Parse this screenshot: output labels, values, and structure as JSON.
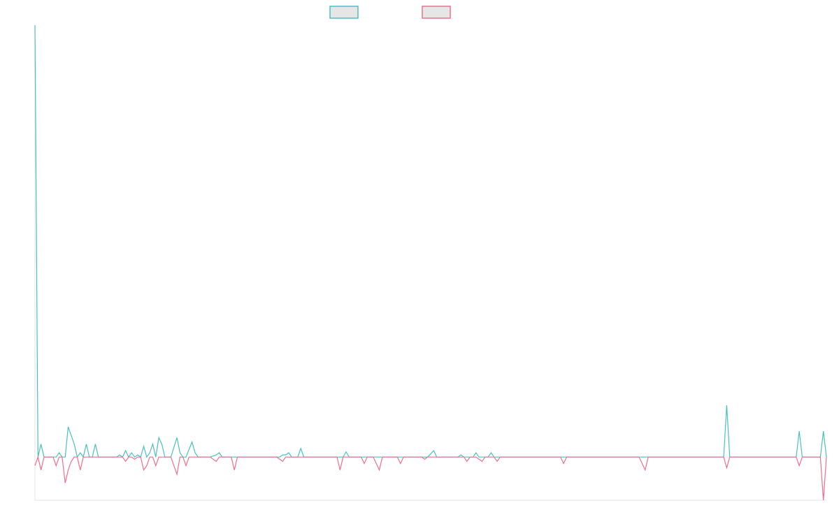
{
  "chart_data": {
    "type": "line",
    "title": "",
    "xlabel": "",
    "ylabel": "",
    "grid": false,
    "legend_position": "top-center",
    "ylim": [
      -10,
      100
    ],
    "x_count": 262,
    "series": [
      {
        "color": "#4bc0c0",
        "legend_fill": "#e6e6e6",
        "points": [
          [
            0,
            100
          ],
          [
            1,
            0
          ],
          [
            2,
            3
          ],
          [
            3,
            0
          ],
          [
            4,
            0
          ],
          [
            5,
            0
          ],
          [
            6,
            0
          ],
          [
            7,
            0
          ],
          [
            8,
            1
          ],
          [
            9,
            0
          ],
          [
            10,
            0
          ],
          [
            11,
            7
          ],
          [
            12,
            5
          ],
          [
            13,
            3
          ],
          [
            14,
            0
          ],
          [
            15,
            1
          ],
          [
            16,
            0
          ],
          [
            17,
            3
          ],
          [
            18,
            0
          ],
          [
            19,
            0
          ],
          [
            20,
            3
          ],
          [
            21,
            0
          ],
          [
            22,
            0
          ],
          [
            23,
            0
          ],
          [
            27,
            0
          ],
          [
            28,
            0.5
          ],
          [
            29,
            0
          ],
          [
            30,
            1.5
          ],
          [
            31,
            0
          ],
          [
            32,
            1
          ],
          [
            33,
            0
          ],
          [
            34,
            0.5
          ],
          [
            35,
            0
          ],
          [
            36,
            2.5
          ],
          [
            37,
            0
          ],
          [
            38,
            1
          ],
          [
            39,
            3
          ],
          [
            40,
            0
          ],
          [
            41,
            4.5
          ],
          [
            42,
            3
          ],
          [
            43,
            0
          ],
          [
            44,
            0
          ],
          [
            45,
            0
          ],
          [
            47,
            4.5
          ],
          [
            48,
            1
          ],
          [
            49,
            0
          ],
          [
            50,
            0
          ],
          [
            52,
            3.5
          ],
          [
            53,
            1
          ],
          [
            54,
            0
          ],
          [
            58,
            0
          ],
          [
            60,
            0.5
          ],
          [
            61,
            1
          ],
          [
            62,
            0
          ],
          [
            64,
            0
          ],
          [
            65,
            0
          ],
          [
            67,
            0
          ],
          [
            68,
            0
          ],
          [
            70,
            0
          ],
          [
            72,
            0
          ],
          [
            74,
            0
          ],
          [
            76,
            0
          ],
          [
            78,
            0
          ],
          [
            80,
            0
          ],
          [
            81,
            0
          ],
          [
            82,
            0.5
          ],
          [
            83,
            0.5
          ],
          [
            84,
            1
          ],
          [
            85,
            0
          ],
          [
            86,
            0
          ],
          [
            87,
            0
          ],
          [
            88,
            2
          ],
          [
            89,
            0
          ],
          [
            90,
            0
          ],
          [
            92,
            0
          ],
          [
            94,
            0
          ],
          [
            96,
            0
          ],
          [
            98,
            0
          ],
          [
            100,
            0
          ],
          [
            102,
            0
          ],
          [
            103,
            1.2
          ],
          [
            104,
            0
          ],
          [
            105,
            0
          ],
          [
            106,
            0
          ],
          [
            108,
            0
          ],
          [
            110,
            0
          ],
          [
            112,
            0
          ],
          [
            114,
            0
          ],
          [
            116,
            0
          ],
          [
            118,
            0
          ],
          [
            120,
            0
          ],
          [
            122,
            0
          ],
          [
            124,
            0
          ],
          [
            126,
            0
          ],
          [
            128,
            0
          ],
          [
            130,
            0
          ],
          [
            132,
            1.5
          ],
          [
            133,
            0
          ],
          [
            134,
            0
          ],
          [
            136,
            0
          ],
          [
            138,
            0
          ],
          [
            140,
            0
          ],
          [
            141,
            0.5
          ],
          [
            142,
            0
          ],
          [
            143,
            0
          ],
          [
            145,
            0
          ],
          [
            146,
            1
          ],
          [
            147,
            0
          ],
          [
            148,
            0
          ],
          [
            150,
            0
          ],
          [
            151,
            1
          ],
          [
            152,
            0
          ],
          [
            154,
            0
          ],
          [
            155,
            0
          ],
          [
            156,
            0
          ],
          [
            157,
            0
          ],
          [
            158,
            0
          ],
          [
            160,
            0
          ],
          [
            162,
            0
          ],
          [
            164,
            0
          ],
          [
            166,
            0
          ],
          [
            168,
            0
          ],
          [
            170,
            0
          ],
          [
            172,
            0
          ],
          [
            174,
            0
          ],
          [
            175,
            0
          ],
          [
            176,
            0
          ],
          [
            178,
            0
          ],
          [
            180,
            0
          ],
          [
            182,
            0
          ],
          [
            184,
            0
          ],
          [
            186,
            0
          ],
          [
            188,
            0
          ],
          [
            190,
            0
          ],
          [
            192,
            0
          ],
          [
            194,
            0
          ],
          [
            196,
            0
          ],
          [
            198,
            0
          ],
          [
            200,
            0
          ],
          [
            202,
            0
          ],
          [
            204,
            0
          ],
          [
            206,
            0
          ],
          [
            208,
            0
          ],
          [
            210,
            0
          ],
          [
            212,
            0
          ],
          [
            214,
            0
          ],
          [
            216,
            0
          ],
          [
            218,
            0
          ],
          [
            220,
            0
          ],
          [
            222,
            0
          ],
          [
            224,
            0
          ],
          [
            226,
            0
          ],
          [
            228,
            0
          ],
          [
            229,
            12
          ],
          [
            230,
            0
          ],
          [
            232,
            0
          ],
          [
            234,
            0
          ],
          [
            236,
            0
          ],
          [
            238,
            0
          ],
          [
            240,
            0
          ],
          [
            242,
            0
          ],
          [
            244,
            0
          ],
          [
            246,
            0
          ],
          [
            248,
            0
          ],
          [
            250,
            0
          ],
          [
            252,
            0
          ],
          [
            253,
            6
          ],
          [
            254,
            0
          ],
          [
            256,
            0
          ],
          [
            258,
            0
          ],
          [
            260,
            0
          ],
          [
            261,
            6
          ],
          [
            262,
            0
          ]
        ]
      },
      {
        "color": "#f06e8c",
        "legend_fill": "#e6e6e6",
        "points": [
          [
            0,
            -2
          ],
          [
            1,
            0
          ],
          [
            2,
            -3
          ],
          [
            3,
            0
          ],
          [
            4,
            0
          ],
          [
            5,
            0
          ],
          [
            6,
            0
          ],
          [
            7,
            -2
          ],
          [
            8,
            0
          ],
          [
            9,
            0
          ],
          [
            10,
            -6
          ],
          [
            11,
            -3
          ],
          [
            12,
            -1
          ],
          [
            13,
            0
          ],
          [
            14,
            0
          ],
          [
            15,
            -3
          ],
          [
            16,
            0
          ],
          [
            17,
            0
          ],
          [
            18,
            0
          ],
          [
            19,
            0
          ],
          [
            20,
            0
          ],
          [
            21,
            0
          ],
          [
            22,
            0
          ],
          [
            23,
            0
          ],
          [
            25,
            0
          ],
          [
            27,
            0
          ],
          [
            29,
            0
          ],
          [
            30,
            -1
          ],
          [
            31,
            0
          ],
          [
            32,
            0
          ],
          [
            33,
            -0.5
          ],
          [
            34,
            0
          ],
          [
            35,
            0
          ],
          [
            36,
            -3
          ],
          [
            37,
            -2
          ],
          [
            38,
            0
          ],
          [
            39,
            0
          ],
          [
            40,
            -2
          ],
          [
            41,
            0
          ],
          [
            42,
            0
          ],
          [
            43,
            0
          ],
          [
            44,
            0
          ],
          [
            45,
            0
          ],
          [
            47,
            -4
          ],
          [
            48,
            0
          ],
          [
            49,
            0
          ],
          [
            50,
            -2
          ],
          [
            51,
            0
          ],
          [
            52,
            0
          ],
          [
            54,
            0
          ],
          [
            56,
            0
          ],
          [
            58,
            0
          ],
          [
            60,
            -1
          ],
          [
            61,
            0
          ],
          [
            62,
            0
          ],
          [
            64,
            0
          ],
          [
            65,
            0
          ],
          [
            66,
            -3
          ],
          [
            67,
            0
          ],
          [
            68,
            0
          ],
          [
            70,
            0
          ],
          [
            72,
            0
          ],
          [
            74,
            0
          ],
          [
            76,
            0
          ],
          [
            78,
            0
          ],
          [
            80,
            0
          ],
          [
            81,
            -0.5
          ],
          [
            82,
            -1
          ],
          [
            83,
            0
          ],
          [
            84,
            0
          ],
          [
            86,
            0
          ],
          [
            88,
            0
          ],
          [
            90,
            0
          ],
          [
            92,
            0
          ],
          [
            94,
            0
          ],
          [
            96,
            0
          ],
          [
            98,
            0
          ],
          [
            100,
            0
          ],
          [
            101,
            -3
          ],
          [
            102,
            0
          ],
          [
            104,
            0
          ],
          [
            106,
            0
          ],
          [
            108,
            0
          ],
          [
            109,
            -1.5
          ],
          [
            110,
            0
          ],
          [
            112,
            0
          ],
          [
            114,
            -3
          ],
          [
            115,
            0
          ],
          [
            116,
            0
          ],
          [
            118,
            0
          ],
          [
            120,
            0
          ],
          [
            121,
            -1.5
          ],
          [
            122,
            0
          ],
          [
            124,
            0
          ],
          [
            126,
            0
          ],
          [
            128,
            0
          ],
          [
            129,
            -0.5
          ],
          [
            130,
            0
          ],
          [
            132,
            0
          ],
          [
            134,
            0
          ],
          [
            136,
            0
          ],
          [
            138,
            0
          ],
          [
            140,
            0
          ],
          [
            142,
            0
          ],
          [
            143,
            -1
          ],
          [
            144,
            0
          ],
          [
            146,
            0
          ],
          [
            148,
            -1
          ],
          [
            149,
            0
          ],
          [
            150,
            0
          ],
          [
            152,
            0
          ],
          [
            153,
            -1
          ],
          [
            154,
            0
          ],
          [
            156,
            0
          ],
          [
            158,
            0
          ],
          [
            160,
            0
          ],
          [
            162,
            0
          ],
          [
            164,
            0
          ],
          [
            166,
            0
          ],
          [
            168,
            0
          ],
          [
            170,
            0
          ],
          [
            172,
            0
          ],
          [
            174,
            0
          ],
          [
            175,
            -1.5
          ],
          [
            176,
            0
          ],
          [
            178,
            0
          ],
          [
            180,
            0
          ],
          [
            182,
            0
          ],
          [
            184,
            0
          ],
          [
            186,
            0
          ],
          [
            188,
            0
          ],
          [
            190,
            0
          ],
          [
            192,
            0
          ],
          [
            194,
            0
          ],
          [
            196,
            0
          ],
          [
            198,
            0
          ],
          [
            200,
            0
          ],
          [
            202,
            -3
          ],
          [
            203,
            0
          ],
          [
            204,
            0
          ],
          [
            206,
            0
          ],
          [
            208,
            0
          ],
          [
            210,
            0
          ],
          [
            212,
            0
          ],
          [
            214,
            0
          ],
          [
            216,
            0
          ],
          [
            218,
            0
          ],
          [
            220,
            0
          ],
          [
            222,
            0
          ],
          [
            224,
            0
          ],
          [
            226,
            0
          ],
          [
            228,
            0
          ],
          [
            229,
            -2.5
          ],
          [
            230,
            0
          ],
          [
            232,
            0
          ],
          [
            234,
            0
          ],
          [
            236,
            0
          ],
          [
            238,
            0
          ],
          [
            240,
            0
          ],
          [
            242,
            0
          ],
          [
            244,
            0
          ],
          [
            246,
            0
          ],
          [
            248,
            0
          ],
          [
            250,
            0
          ],
          [
            252,
            0
          ],
          [
            253,
            -2
          ],
          [
            254,
            0
          ],
          [
            256,
            0
          ],
          [
            258,
            0
          ],
          [
            260,
            0
          ],
          [
            261,
            -10
          ],
          [
            262,
            0
          ]
        ]
      }
    ]
  }
}
